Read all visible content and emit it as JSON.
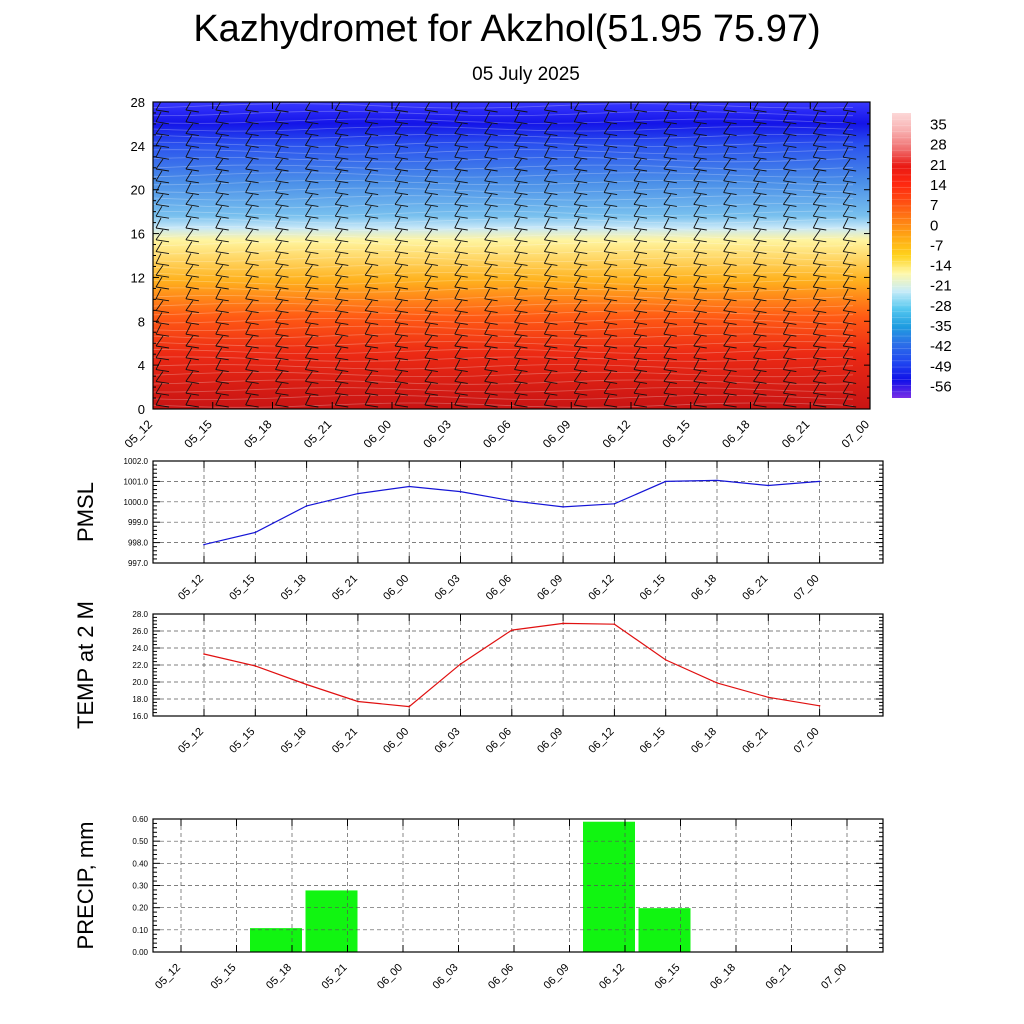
{
  "title": "Kazhydromet for Akzhol(51.95 75.97)",
  "subtitle": "05 July 2025",
  "colors": {
    "pmsl_line": "#1515d6",
    "temp_line": "#e01010",
    "precip_bar": "#11f511",
    "grid": "#555555"
  },
  "chart_data": [
    {
      "type": "heatmap",
      "title": "",
      "x": [
        "05_12",
        "05_15",
        "05_18",
        "05_21",
        "06_00",
        "06_03",
        "06_06",
        "06_09",
        "06_12",
        "06_15",
        "06_18",
        "06_21",
        "07_00"
      ],
      "y_ticks": [
        "0",
        "4",
        "8",
        "12",
        "16",
        "20",
        "24",
        "28"
      ],
      "ylim": [
        0,
        28
      ],
      "colorbar": {
        "labels": [
          "35",
          "28",
          "21",
          "14",
          "7",
          "0",
          "-7",
          "-14",
          "-21",
          "-28",
          "-35",
          "-42",
          "-49",
          "-56"
        ],
        "range": [
          -60,
          39
        ],
        "colors": [
          "#7a2ee6",
          "#1010e8",
          "#2046f0",
          "#2c6ee8",
          "#1e9ce0",
          "#56c8f0",
          "#c8ecf8",
          "#fff8a8",
          "#ffd21c",
          "#ffaa14",
          "#ff7e14",
          "#ff4e12",
          "#ff2810",
          "#ea1a14",
          "#f07070",
          "#f8b0b0",
          "#fcd8d8"
        ]
      },
      "wind_barbs": true
    },
    {
      "type": "line",
      "ylabel": "PMSL",
      "x": [
        "05_12",
        "05_15",
        "05_18",
        "05_21",
        "06_00",
        "06_03",
        "06_06",
        "06_09",
        "06_12",
        "06_15",
        "06_18",
        "06_21",
        "07_00"
      ],
      "series": [
        {
          "values": [
            997.9,
            998.5,
            999.8,
            1000.4,
            1000.75,
            1000.5,
            1000.05,
            999.75,
            999.9,
            1001.0,
            1001.05,
            1000.8,
            1001.0
          ]
        }
      ],
      "ylim": [
        997.0,
        1002.0
      ],
      "yticks": [
        "997.0",
        "998.0",
        "999.0",
        "1000.0",
        "1001.0",
        "1002.0"
      ],
      "grid": true
    },
    {
      "type": "line",
      "ylabel": "TEMP at 2 M",
      "x": [
        "05_12",
        "05_15",
        "05_18",
        "05_21",
        "06_00",
        "06_03",
        "06_06",
        "06_09",
        "06_12",
        "06_15",
        "06_18",
        "06_21",
        "07_00"
      ],
      "series": [
        {
          "values": [
            23.3,
            21.9,
            19.7,
            17.7,
            17.1,
            22.1,
            26.1,
            26.9,
            26.8,
            22.6,
            19.9,
            18.2,
            17.2
          ]
        }
      ],
      "ylim": [
        16.0,
        28.0
      ],
      "yticks": [
        "16.0",
        "18.0",
        "20.0",
        "22.0",
        "24.0",
        "26.0",
        "28.0"
      ],
      "grid": true
    },
    {
      "type": "bar",
      "ylabel": "PRECIP, mm",
      "categories": [
        "05_12",
        "05_15",
        "05_18",
        "05_21",
        "06_00",
        "06_03",
        "06_06",
        "06_09",
        "06_12",
        "06_15",
        "06_18",
        "06_21",
        "07_00"
      ],
      "values": [
        0,
        0,
        0.11,
        0.28,
        0,
        0,
        0,
        0,
        0.59,
        0.2,
        0,
        0,
        0
      ],
      "ylim": [
        0,
        0.6
      ],
      "yticks": [
        "0.00",
        "0.10",
        "0.20",
        "0.30",
        "0.40",
        "0.50",
        "0.60"
      ],
      "grid": true
    }
  ]
}
